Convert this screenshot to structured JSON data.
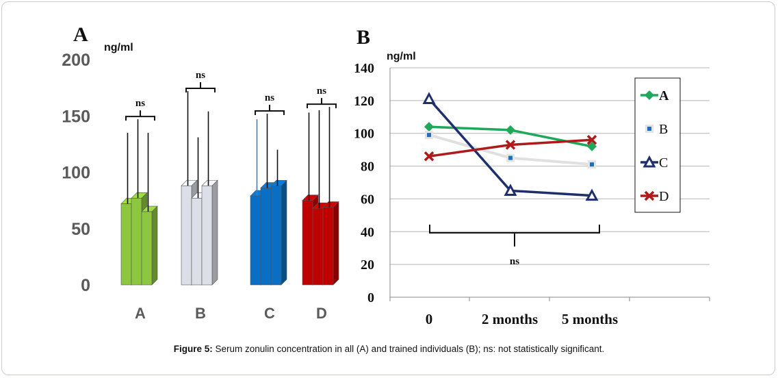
{
  "caption": {
    "label": "Figure 5:",
    "text": "Serum zonulin concentration in all (A) and trained individuals (B); ns: not statistically significant."
  },
  "chart_data": [
    {
      "panel_label": "A",
      "type": "bar",
      "unit_label": "ng/ml",
      "ylim": [
        0,
        200
      ],
      "yticks": [
        "0",
        "50",
        "100",
        "150",
        "200"
      ],
      "groups": [
        {
          "name": "A",
          "color": "#8dc63f",
          "values": [
            72,
            77,
            65
          ],
          "error_tops": [
            135,
            147,
            135
          ],
          "sig": "ns"
        },
        {
          "name": "B",
          "color": "#dcdfe8",
          "values": [
            88,
            77,
            88
          ],
          "error_tops": [
            172,
            131,
            154
          ],
          "sig": "ns"
        },
        {
          "name": "C",
          "color": "#0a6fc4",
          "values": [
            79,
            86,
            88
          ],
          "error_tops": [
            147,
            152,
            120
          ],
          "sig": "ns"
        },
        {
          "name": "D",
          "color": "#c00000",
          "values": [
            75,
            68,
            69
          ],
          "error_tops": [
            153,
            155,
            158
          ],
          "sig": "ns"
        }
      ],
      "grid": false
    },
    {
      "panel_label": "B",
      "type": "line",
      "unit_label": "ng/ml",
      "categories": [
        "0",
        "2 months",
        "5 months"
      ],
      "ylim": [
        0,
        140
      ],
      "yticks": [
        "0",
        "20",
        "40",
        "60",
        "80",
        "100",
        "120",
        "140"
      ],
      "grid": true,
      "legend_position": "right",
      "series": [
        {
          "name": "A",
          "color": "#1fa85a",
          "marker": "diamond",
          "values": [
            104,
            102,
            92
          ]
        },
        {
          "name": "B",
          "color": "#e0e0e0",
          "marker": "square",
          "marker_color": "#1f6fc1",
          "values": [
            99,
            85,
            81
          ]
        },
        {
          "name": "C",
          "color": "#1f2f6e",
          "marker": "triangle",
          "values": [
            121,
            65,
            62
          ]
        },
        {
          "name": "D",
          "color": "#b01a1a",
          "marker": "x",
          "values": [
            86,
            93,
            96
          ]
        }
      ],
      "annotation": "ns"
    }
  ]
}
